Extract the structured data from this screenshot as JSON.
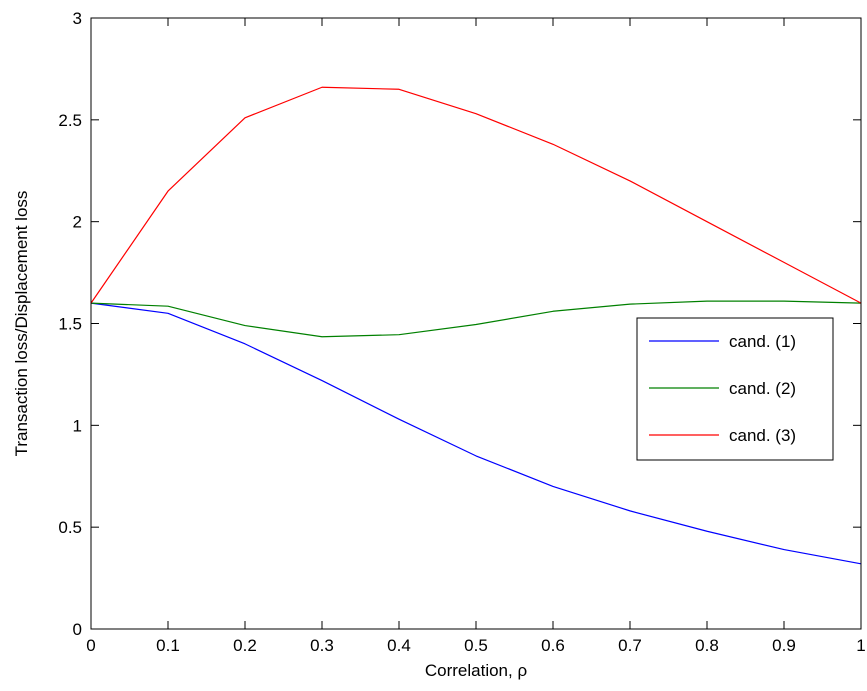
{
  "chart_data": {
    "type": "line",
    "title": "",
    "xlabel": "Correlation, ρ",
    "ylabel": "Transaction loss/Displacement loss",
    "xlim": [
      0,
      1
    ],
    "ylim": [
      0,
      3
    ],
    "xticks": [
      0,
      0.1,
      0.2,
      0.3,
      0.4,
      0.5,
      0.6,
      0.7,
      0.8,
      0.9,
      1
    ],
    "xtick_labels": [
      "0",
      "0.1",
      "0.2",
      "0.3",
      "0.4",
      "0.5",
      "0.6",
      "0.7",
      "0.8",
      "0.9",
      "1"
    ],
    "yticks": [
      0,
      0.5,
      1,
      1.5,
      2,
      2.5,
      3
    ],
    "ytick_labels": [
      "0",
      "0.5",
      "1",
      "1.5",
      "2",
      "2.5",
      "3"
    ],
    "grid": false,
    "legend_position": "right",
    "x": [
      0,
      0.1,
      0.2,
      0.3,
      0.4,
      0.5,
      0.6,
      0.7,
      0.8,
      0.9,
      1.0
    ],
    "series": [
      {
        "name": "cand. (1)",
        "color": "#0000ff",
        "values": [
          1.6,
          1.55,
          1.4,
          1.22,
          1.03,
          0.85,
          0.7,
          0.58,
          0.48,
          0.39,
          0.32
        ]
      },
      {
        "name": "cand. (2)",
        "color": "#008000",
        "values": [
          1.6,
          1.585,
          1.49,
          1.435,
          1.445,
          1.495,
          1.56,
          1.595,
          1.61,
          1.61,
          1.6
        ]
      },
      {
        "name": "cand. (3)",
        "color": "#ff0000",
        "values": [
          1.6,
          2.15,
          2.51,
          2.66,
          2.65,
          2.53,
          2.38,
          2.2,
          2.0,
          1.8,
          1.6
        ]
      }
    ]
  }
}
